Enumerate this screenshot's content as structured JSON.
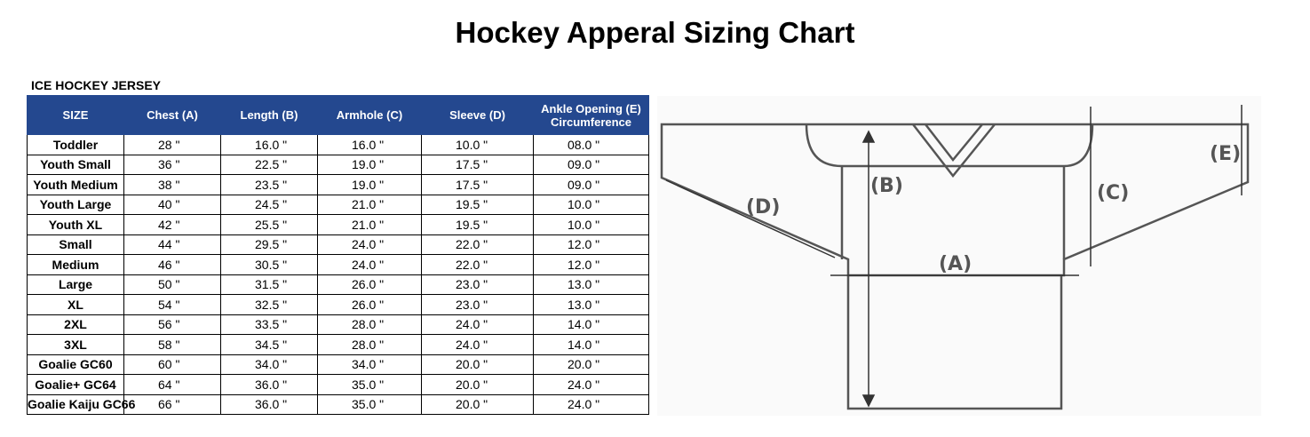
{
  "header": {
    "title": "Hockey Apperal Sizing Chart"
  },
  "table": {
    "caption": "ICE HOCKEY JERSEY",
    "header": [
      "SIZE",
      "Chest (A)",
      "Length (B)",
      "Armhole (C)",
      "Sleeve (D)",
      "Ankle Opening (E) Circumference"
    ],
    "rows": [
      [
        "Toddler",
        "28 \"",
        "16.0 \"",
        "16.0 \"",
        "10.0 \"",
        "08.0 \""
      ],
      [
        "Youth Small",
        "36 \"",
        "22.5 \"",
        "19.0 \"",
        "17.5 \"",
        "09.0 \""
      ],
      [
        "Youth Medium",
        "38 \"",
        "23.5 \"",
        "19.0 \"",
        "17.5 \"",
        "09.0 \""
      ],
      [
        "Youth Large",
        "40 \"",
        "24.5 \"",
        "21.0 \"",
        "19.5 \"",
        "10.0 \""
      ],
      [
        "Youth XL",
        "42 \"",
        "25.5 \"",
        "21.0 \"",
        "19.5 \"",
        "10.0 \""
      ],
      [
        "Small",
        "44 \"",
        "29.5 \"",
        "24.0 \"",
        "22.0 \"",
        "12.0 \""
      ],
      [
        "Medium",
        "46 \"",
        "30.5 \"",
        "24.0 \"",
        "22.0 \"",
        "12.0 \""
      ],
      [
        "Large",
        "50 \"",
        "31.5 \"",
        "26.0 \"",
        "23.0 \"",
        "13.0 \""
      ],
      [
        "XL",
        "54 \"",
        "32.5 \"",
        "26.0 \"",
        "23.0 \"",
        "13.0 \""
      ],
      [
        "2XL",
        "56 \"",
        "33.5 \"",
        "28.0 \"",
        "24.0 \"",
        "14.0 \""
      ],
      [
        "3XL",
        "58 \"",
        "34.5 \"",
        "28.0 \"",
        "24.0 \"",
        "14.0 \""
      ],
      [
        "Goalie GC60",
        "60 \"",
        "34.0 \"",
        "34.0 \"",
        "20.0 \"",
        "20.0 \""
      ],
      [
        "Goalie+ GC64",
        "64 \"",
        "36.0 \"",
        "35.0 \"",
        "20.0 \"",
        "24.0 \""
      ],
      [
        "Goalie Kaiju GC66",
        "66 \"",
        "36.0 \"",
        "35.0 \"",
        "20.0 \"",
        "24.0 \""
      ]
    ]
  },
  "diagram": {
    "labels": [
      "(A)",
      "(B)",
      "(C)",
      "(D)",
      "(E)"
    ]
  }
}
